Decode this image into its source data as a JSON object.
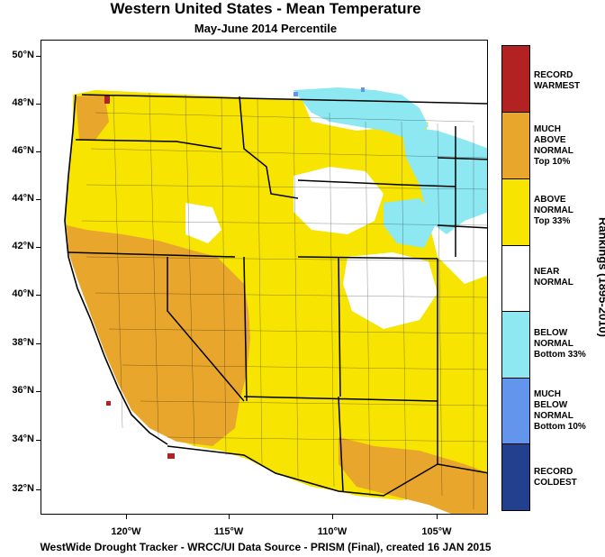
{
  "title": "Western United States - Mean Temperature",
  "subtitle": "May-June 2014 Percentile",
  "footer": "WestWide Drought Tracker - WRCC/UI  Data Source - PRISM (Final), created 16 JAN 2015",
  "map": {
    "lat_labels": [
      "50°N",
      "48°N",
      "46°N",
      "44°N",
      "42°N",
      "40°N",
      "38°N",
      "36°N",
      "34°N",
      "32°N"
    ],
    "lon_labels": [
      "120°W",
      "115°W",
      "110°W",
      "105°W"
    ]
  },
  "legend": {
    "title": "Rankings (1895-2010)",
    "items": [
      {
        "label": "RECORD\nWARMEST",
        "color": "#b22222"
      },
      {
        "label": "MUCH\nABOVE\nNORMAL\nTop 10%",
        "color": "#e8a62c"
      },
      {
        "label": "ABOVE\nNORMAL\nTop 33%",
        "color": "#f7e400"
      },
      {
        "label": "NEAR\nNORMAL",
        "color": "#ffffff"
      },
      {
        "label": "BELOW\nNORMAL\nBottom 33%",
        "color": "#8ee8f2"
      },
      {
        "label": "MUCH\nBELOW\nNORMAL\nBottom 10%",
        "color": "#6495ed"
      },
      {
        "label": "RECORD\nCOLDEST",
        "color": "#23408e"
      }
    ]
  }
}
